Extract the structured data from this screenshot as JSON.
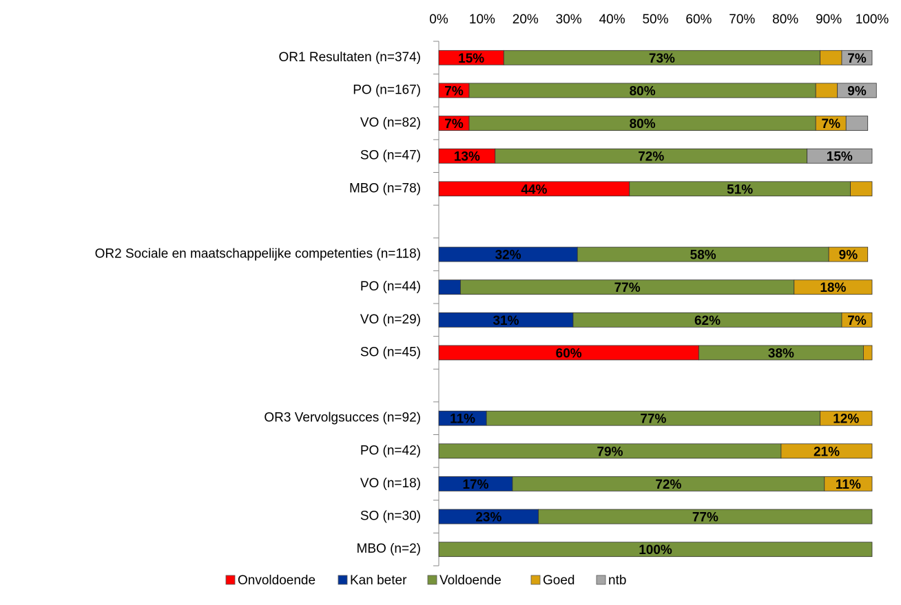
{
  "chart_data": {
    "type": "stacked-barh",
    "categories": [
      "OR1 Resultaten (n=374)",
      "PO (n=167)",
      "VO (n=82)",
      "SO (n=47)",
      "MBO (n=78)",
      null,
      "OR2 Sociale en maatschappelijke competenties (n=118)",
      "PO (n=44)",
      "VO (n=29)",
      "SO (n=45)",
      null,
      "OR3 Vervolgsucces (n=92)",
      "PO (n=42)",
      "VO (n=18)",
      "SO (n=30)",
      "MBO (n=2)"
    ],
    "series": [
      {
        "name": "Onvoldoende",
        "color": "#ff0000",
        "label_color": "#ffffff",
        "values": [
          15,
          7,
          7,
          13,
          44,
          null,
          null,
          null,
          null,
          60,
          null,
          null,
          null,
          null,
          null,
          null
        ],
        "value_labels": [
          "15%",
          "7%",
          "7%",
          "13%",
          "44%",
          null,
          null,
          null,
          null,
          "60%",
          null,
          null,
          null,
          null,
          null,
          null
        ]
      },
      {
        "name": "Kan beter",
        "color": "#003399",
        "label_color": "#ffffff",
        "values": [
          null,
          null,
          null,
          null,
          null,
          null,
          32,
          5,
          31,
          null,
          null,
          11,
          null,
          17,
          23,
          null
        ],
        "value_labels": [
          null,
          null,
          null,
          null,
          null,
          null,
          "32%",
          null,
          "31%",
          null,
          null,
          "11%",
          null,
          "17%",
          "23%",
          null
        ]
      },
      {
        "name": "Voldoende",
        "color": "#77933c",
        "label_color": "#ffffff",
        "values": [
          73,
          80,
          80,
          72,
          51,
          null,
          58,
          77,
          62,
          38,
          null,
          77,
          79,
          72,
          77,
          100
        ],
        "value_labels": [
          "73%",
          "80%",
          "80%",
          "72%",
          "51%",
          null,
          "58%",
          "77%",
          "62%",
          "38%",
          null,
          "77%",
          "79%",
          "72%",
          "77%",
          "100%"
        ]
      },
      {
        "name": "Goed",
        "color": "#d9a10f",
        "label_color": "#000000",
        "values": [
          5,
          5,
          7,
          null,
          5,
          null,
          9,
          18,
          7,
          2,
          null,
          12,
          21,
          11,
          null,
          null
        ],
        "value_labels": [
          null,
          null,
          "7%",
          null,
          null,
          null,
          "9%",
          "18%",
          "7%",
          null,
          null,
          "12%",
          "21%",
          "11%",
          null,
          null
        ]
      },
      {
        "name": "ntb",
        "color": "#a6a6a6",
        "label_color": "#ffffff",
        "values": [
          7,
          9,
          5,
          15,
          null,
          null,
          null,
          null,
          null,
          null,
          null,
          null,
          null,
          null,
          null,
          null
        ],
        "value_labels": [
          "7%",
          "9%",
          null,
          "15%",
          null,
          null,
          null,
          null,
          null,
          null,
          null,
          null,
          null,
          null,
          null,
          null
        ]
      }
    ],
    "xlim": [
      0,
      100
    ],
    "xticks": [
      {
        "value": 0,
        "label": "0%"
      },
      {
        "value": 10,
        "label": "10%"
      },
      {
        "value": 20,
        "label": "20%"
      },
      {
        "value": 30,
        "label": "30%"
      },
      {
        "value": 40,
        "label": "40%"
      },
      {
        "value": 50,
        "label": "50%"
      },
      {
        "value": 60,
        "label": "60%"
      },
      {
        "value": 70,
        "label": "70%"
      },
      {
        "value": 80,
        "label": "80%"
      },
      {
        "value": 90,
        "label": "90%"
      },
      {
        "value": 100,
        "label": "100%"
      }
    ],
    "grid": false,
    "legend": "bottom"
  }
}
